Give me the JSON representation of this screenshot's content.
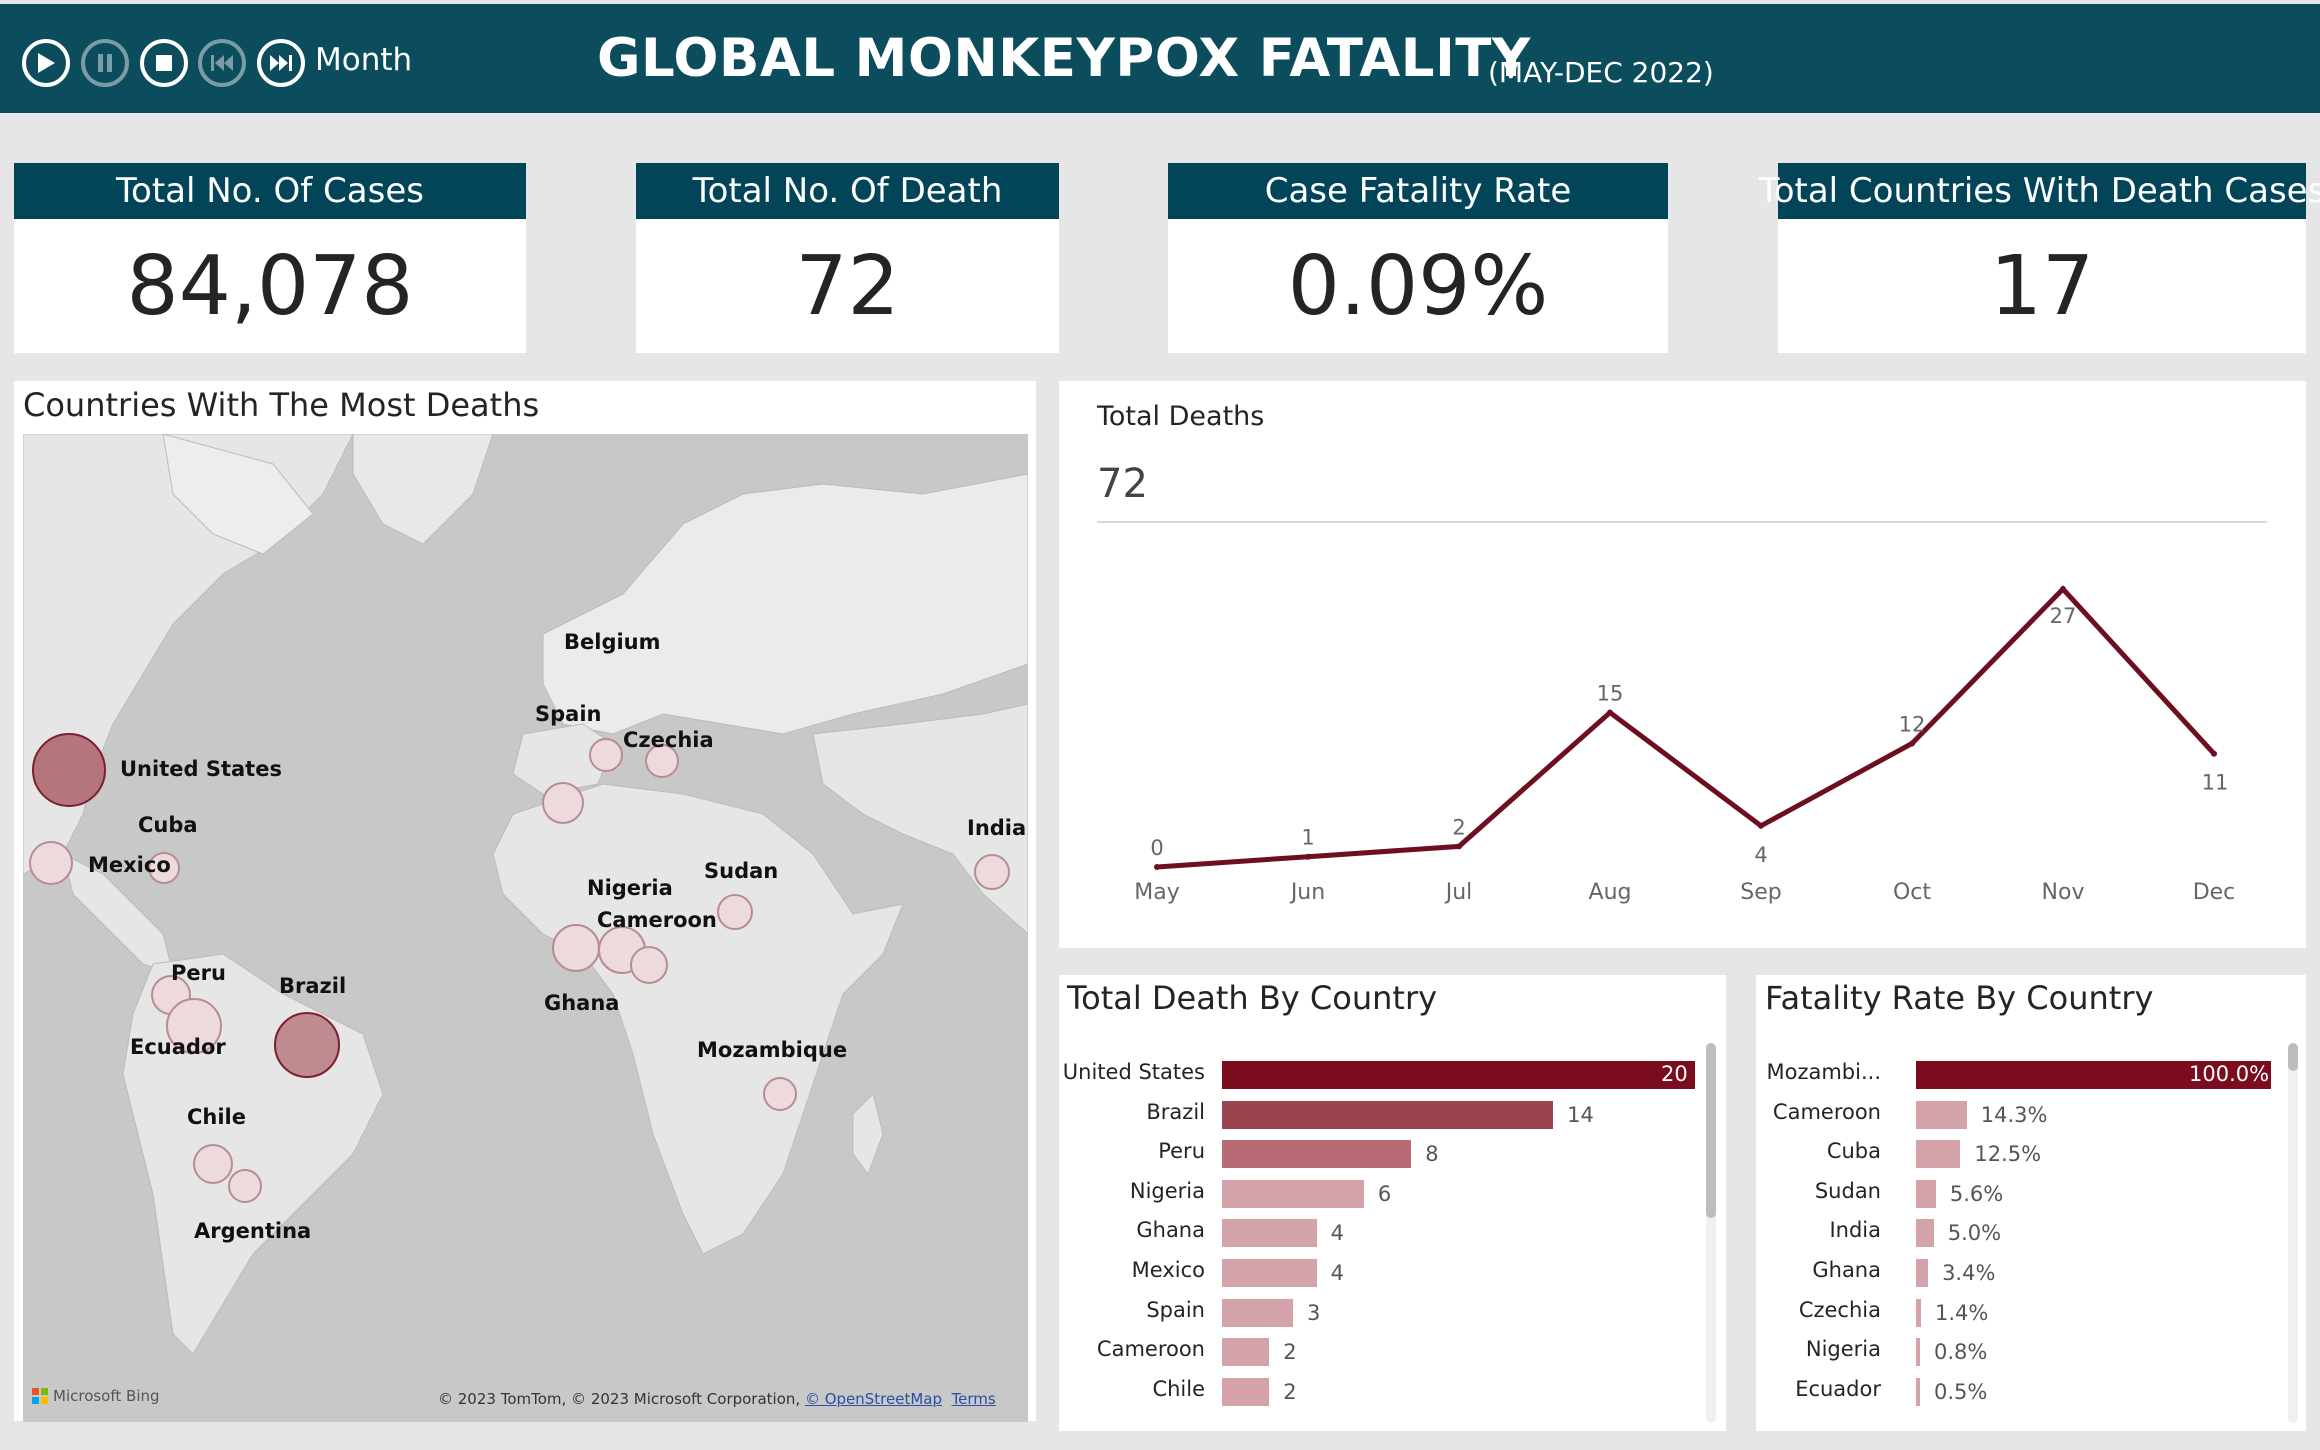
{
  "header": {
    "month_label": "Month",
    "title": "GLOBAL MONKEYPOX FATALITY",
    "subtitle": "(MAY-DEC 2022)",
    "controls": [
      "play-icon",
      "pause-icon",
      "stop-icon",
      "skip-back-icon",
      "skip-forward-icon"
    ],
    "color": "#0b4d5c"
  },
  "kpis": [
    {
      "label": "Total No. Of Cases",
      "value": "84,078"
    },
    {
      "label": "Total No. Of Death",
      "value": "72"
    },
    {
      "label": "Case Fatality Rate",
      "value": "0.09%"
    },
    {
      "label": "Total Countries With Death Cases",
      "value": "17"
    }
  ],
  "map": {
    "title": "Countries With The Most Deaths",
    "labels": [
      "Belgium",
      "Spain",
      "Czechia",
      "United States",
      "Cuba",
      "Mexico",
      "India",
      "Sudan",
      "Nigeria",
      "Cameroon",
      "Ghana",
      "Peru",
      "Brazil",
      "Ecuador",
      "Mozambique",
      "Chile",
      "Argentina"
    ],
    "brand": "Microsoft Bing",
    "credit": "© 2023 TomTom, © 2023 Microsoft Corporation, ",
    "osm_link": "© OpenStreetMap",
    "terms_link": "Terms"
  },
  "line": {
    "title": "Total Deaths",
    "total": "72"
  },
  "death_by_country": {
    "title": "Total Death By Country"
  },
  "fatality_by_country": {
    "title": "Fatality Rate By Country"
  },
  "colors": {
    "line": "#6d0f1f",
    "bar_dark": "#7b0c1d",
    "bar_mid": "#9b4450",
    "bar_light": "#d4a3a9",
    "kpi_head": "#024559"
  },
  "chart_data": [
    {
      "type": "line",
      "title": "Total Deaths",
      "categories": [
        "May",
        "Jun",
        "Jul",
        "Aug",
        "Sep",
        "Oct",
        "Nov",
        "Dec"
      ],
      "values": [
        0,
        1,
        2,
        15,
        4,
        12,
        27,
        11
      ],
      "ylim": [
        0,
        27
      ]
    },
    {
      "type": "bar",
      "orientation": "horizontal",
      "title": "Total Death By Country",
      "categories": [
        "United States",
        "Brazil",
        "Peru",
        "Nigeria",
        "Ghana",
        "Mexico",
        "Spain",
        "Cameroon",
        "Chile"
      ],
      "values": [
        20,
        14,
        8,
        6,
        4,
        4,
        3,
        2,
        2
      ]
    },
    {
      "type": "bar",
      "orientation": "horizontal",
      "title": "Fatality Rate By Country",
      "categories": [
        "Mozambi...",
        "Cameroon",
        "Cuba",
        "Sudan",
        "India",
        "Ghana",
        "Czechia",
        "Nigeria",
        "Ecuador"
      ],
      "values": [
        100.0,
        14.3,
        12.5,
        5.6,
        5.0,
        3.4,
        1.4,
        0.8,
        0.5
      ],
      "labels": [
        "100.0%",
        "14.3%",
        "12.5%",
        "5.6%",
        "5.0%",
        "3.4%",
        "1.4%",
        "0.8%",
        "0.5%"
      ]
    }
  ]
}
